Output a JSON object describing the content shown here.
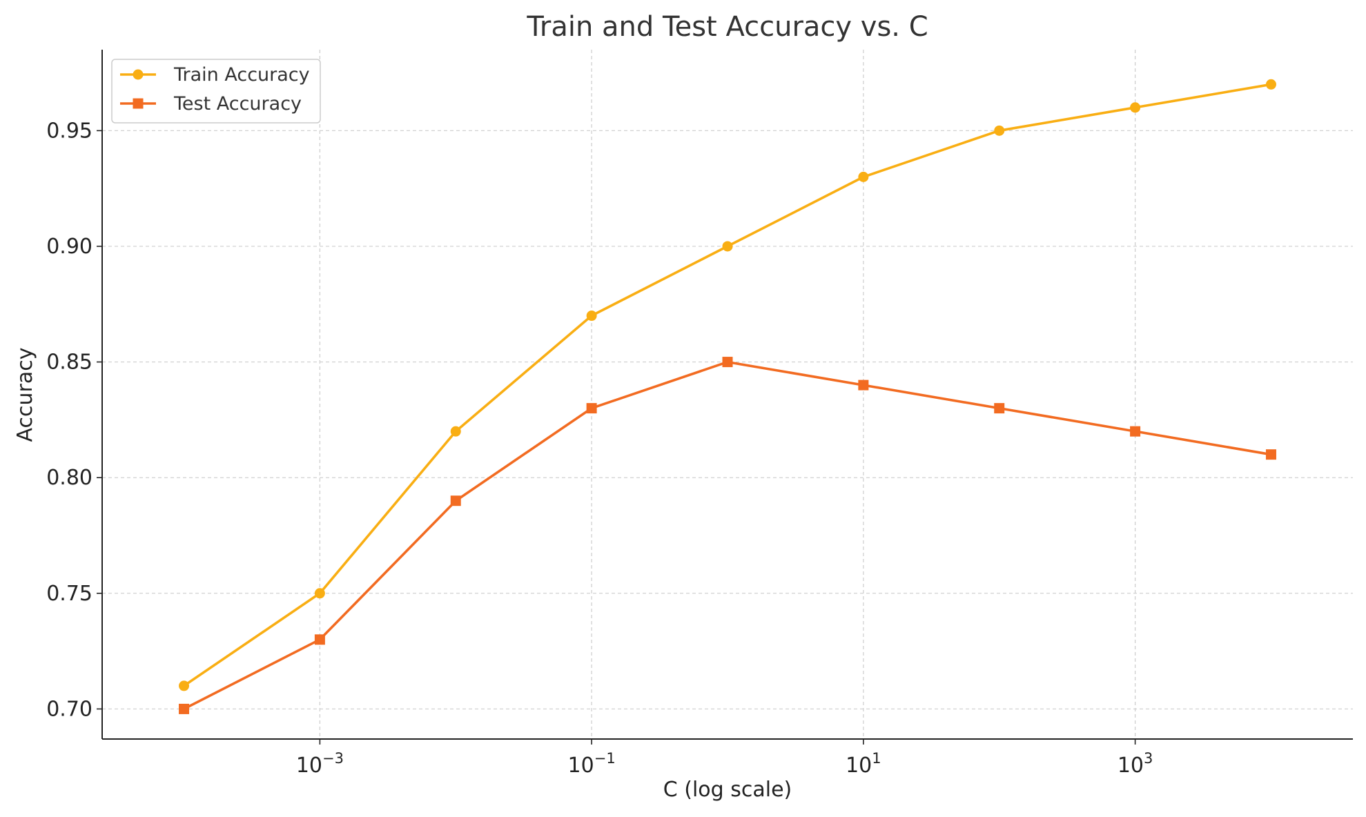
{
  "chart_data": {
    "type": "line",
    "title": "Train and Test Accuracy vs. C",
    "xlabel": "C (log scale)",
    "ylabel": "Accuracy",
    "xscale": "log",
    "x": [
      0.0001,
      0.001,
      0.01,
      0.1,
      1,
      10,
      100,
      1000,
      10000
    ],
    "xlim": [
      2.5e-05,
      40000
    ],
    "ylim": [
      0.687,
      0.985
    ],
    "x_ticks": [
      {
        "value": 0.001,
        "base": "10",
        "exp": "−3"
      },
      {
        "value": 0.1,
        "base": "10",
        "exp": "−1"
      },
      {
        "value": 10,
        "base": "10",
        "exp": "1"
      },
      {
        "value": 1000,
        "base": "10",
        "exp": "3"
      }
    ],
    "y_ticks": [
      {
        "value": 0.7,
        "label": "0.70"
      },
      {
        "value": 0.75,
        "label": "0.75"
      },
      {
        "value": 0.8,
        "label": "0.80"
      },
      {
        "value": 0.85,
        "label": "0.85"
      },
      {
        "value": 0.9,
        "label": "0.90"
      },
      {
        "value": 0.95,
        "label": "0.95"
      }
    ],
    "grid": true,
    "legend_position": "top-left",
    "series": [
      {
        "name": "Train Accuracy",
        "marker": "circle",
        "color": "#F9AE13",
        "values": [
          0.71,
          0.75,
          0.82,
          0.87,
          0.9,
          0.93,
          0.95,
          0.96,
          0.97
        ]
      },
      {
        "name": "Test Accuracy",
        "marker": "square",
        "color": "#F26B21",
        "values": [
          0.7,
          0.73,
          0.79,
          0.83,
          0.85,
          0.84,
          0.83,
          0.82,
          0.81
        ]
      }
    ]
  }
}
